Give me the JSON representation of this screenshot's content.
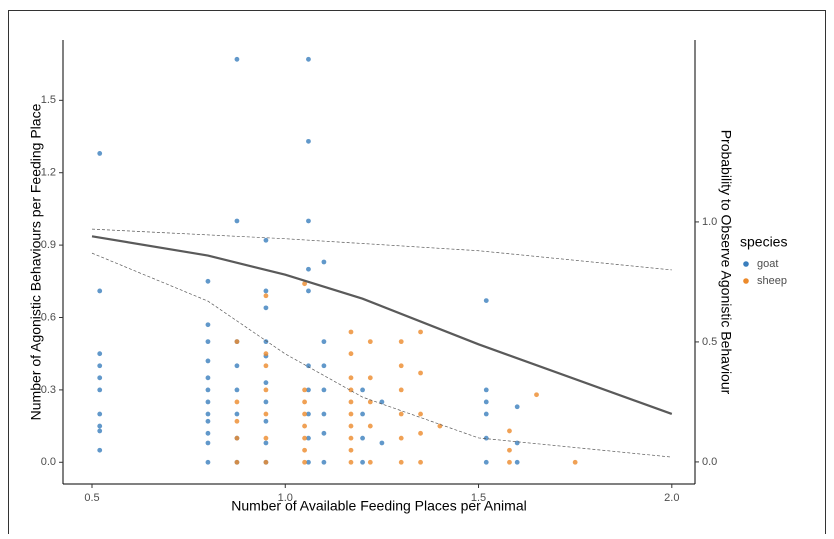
{
  "chart_data": {
    "type": "scatter",
    "x_label": "Number of Available Feeding Places per Animal",
    "y_label": "Number of Agonistic Behaviours per Feeding Place",
    "y2_label": "Probability to Observe Agonistic Behaviour",
    "legend_title": "species",
    "legend_position": "right",
    "xlim": [
      0.425,
      2.06
    ],
    "ylim": [
      -0.09,
      1.75
    ],
    "y2lim": [
      -0.092,
      1.758
    ],
    "xticks": [
      0.5,
      {
        "value": 1,
        "label": "1.0"
      },
      1.5,
      {
        "value": 2,
        "label": "2.0"
      }
    ],
    "yticks": [
      {
        "value": 0,
        "label": "0.0"
      },
      0.3,
      0.6,
      0.9,
      1.2,
      1.5
    ],
    "y2ticks": [
      {
        "value": 0,
        "label": "0.0"
      },
      0.5,
      {
        "value": 1,
        "label": "1.0"
      }
    ],
    "series": [
      {
        "name": "goat",
        "color": "#3a7ebd",
        "x": [
          0.52,
          0.52,
          0.52,
          0.52,
          0.52,
          0.52,
          0.52,
          0.52,
          0.52,
          0.52,
          0.8,
          0.8,
          0.8,
          0.8,
          0.8,
          0.8,
          0.8,
          0.8,
          0.8,
          0.8,
          0.8,
          0.8,
          0.875,
          0.875,
          0.875,
          0.875,
          0.875,
          0.875,
          0.875,
          0.875,
          0.95,
          0.95,
          0.95,
          0.95,
          0.95,
          0.95,
          0.95,
          0.95,
          0.95,
          0.95,
          1.06,
          1.06,
          1.06,
          1.06,
          1.06,
          1.06,
          1.06,
          1.06,
          1.06,
          1.06,
          1.1,
          1.1,
          1.1,
          1.1,
          1.1,
          1.1,
          1.1,
          1.2,
          1.2,
          1.2,
          1.2,
          1.25,
          1.25,
          1.52,
          1.52,
          1.52,
          1.52,
          1.52,
          1.52,
          1.6,
          1.6,
          1.6
        ],
        "values": [
          1.28,
          0.71,
          0.45,
          0.4,
          0.35,
          0.3,
          0.2,
          0.15,
          0.13,
          0.05,
          0.75,
          0.57,
          0.5,
          0.42,
          0.35,
          0.3,
          0.25,
          0.2,
          0.17,
          0.12,
          0.08,
          0,
          1.67,
          1,
          0.5,
          0.4,
          0.3,
          0.2,
          0.1,
          0,
          0.92,
          0.71,
          0.64,
          0.5,
          0.44,
          0.33,
          0.25,
          0.17,
          0.08,
          0,
          1.67,
          1.33,
          1,
          0.8,
          0.71,
          0.4,
          0.3,
          0.2,
          0.1,
          0,
          0.83,
          0.5,
          0.4,
          0.3,
          0.2,
          0.12,
          0,
          0.3,
          0.2,
          0.1,
          0,
          0.25,
          0.08,
          0.67,
          0.3,
          0.25,
          0.2,
          0.1,
          0,
          0.23,
          0.08,
          0
        ]
      },
      {
        "name": "sheep",
        "color": "#ec8a2b",
        "x": [
          0.875,
          0.875,
          0.875,
          0.875,
          0.875,
          0.95,
          0.95,
          0.95,
          0.95,
          0.95,
          0.95,
          0.95,
          1.05,
          1.05,
          1.05,
          1.05,
          1.05,
          1.05,
          1.05,
          1.05,
          1.17,
          1.17,
          1.17,
          1.17,
          1.17,
          1.17,
          1.17,
          1.17,
          1.17,
          1.17,
          1.22,
          1.22,
          1.22,
          1.22,
          1.22,
          1.3,
          1.3,
          1.3,
          1.3,
          1.3,
          1.3,
          1.35,
          1.35,
          1.35,
          1.35,
          1.35,
          1.4,
          1.58,
          1.58,
          1.58,
          1.65,
          1.75
        ],
        "values": [
          0.5,
          0.25,
          0.17,
          0.1,
          0,
          0.69,
          0.45,
          0.4,
          0.3,
          0.2,
          0.1,
          0,
          0.74,
          0.3,
          0.25,
          0.2,
          0.15,
          0.1,
          0.05,
          0,
          0.54,
          0.45,
          0.35,
          0.3,
          0.25,
          0.2,
          0.15,
          0.1,
          0.05,
          0,
          0.5,
          0.35,
          0.25,
          0.15,
          0,
          0.5,
          0.4,
          0.3,
          0.2,
          0.1,
          0,
          0.54,
          0.37,
          0.2,
          0.12,
          0,
          0.15,
          0.13,
          0.05,
          0,
          0.28,
          0
        ]
      }
    ],
    "lines": [
      {
        "style": "solid",
        "color": "#5a5a5a",
        "axis": "y2",
        "x": [
          0.5,
          0.8,
          1,
          1.2,
          1.5,
          2
        ],
        "values": [
          0.94,
          0.86,
          0.78,
          0.68,
          0.49,
          0.2
        ]
      },
      {
        "style": "dashed",
        "color": "#5a5a5a",
        "axis": "y2",
        "x": [
          0.5,
          1,
          1.5,
          2
        ],
        "values": [
          0.97,
          0.93,
          0.88,
          0.8
        ]
      },
      {
        "style": "dashed",
        "color": "#5a5a5a",
        "axis": "y2",
        "x": [
          0.5,
          0.8,
          1,
          1.2,
          1.5,
          2
        ],
        "values": [
          0.87,
          0.67,
          0.45,
          0.27,
          0.1,
          0.02
        ]
      }
    ]
  }
}
